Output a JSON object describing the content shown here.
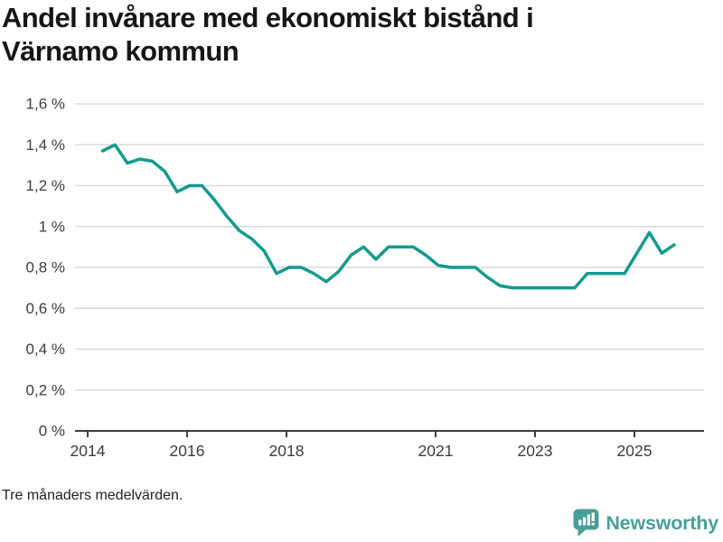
{
  "page": {
    "title": "Andel invånare med ekonomiskt bistånd i Värnamo kommun",
    "footnote": "Tre månaders medelvärden.",
    "brand": {
      "name": "Newsworthy",
      "icon": "bar-chart-speech-bubble",
      "color": "#4a9e99"
    }
  },
  "colors": {
    "line": "#149a8d",
    "grid": "#dadada",
    "axis": "#3d3d3d",
    "tick_text": "#3d3d3d",
    "title_text": "#161616",
    "background": "#ffffff"
  },
  "chart_data": {
    "type": "line",
    "title": "Andel invånare med ekonomiskt bistånd i Värnamo kommun",
    "series_name": "Andel invånare med ekonomiskt bistånd",
    "unit": "%",
    "decimal_style": "comma",
    "grid": "horizontal",
    "legend": "none",
    "xlabel": "",
    "ylabel": "",
    "xlim": [
      2013.745,
      2026.4
    ],
    "ylim": [
      0,
      1.6
    ],
    "x_ticks": [
      {
        "value": 2014,
        "label": "2014"
      },
      {
        "value": 2016,
        "label": "2016"
      },
      {
        "value": 2018,
        "label": "2018"
      },
      {
        "value": 2021,
        "label": "2021"
      },
      {
        "value": 2023,
        "label": "2023"
      },
      {
        "value": 2025,
        "label": "2025"
      }
    ],
    "y_ticks": [
      {
        "value": 0,
        "label": "0 %"
      },
      {
        "value": 0.2,
        "label": "0,2 %"
      },
      {
        "value": 0.4,
        "label": "0,4 %"
      },
      {
        "value": 0.6,
        "label": "0,6 %"
      },
      {
        "value": 0.8,
        "label": "0,8 %"
      },
      {
        "value": 1,
        "label": "1 %"
      },
      {
        "value": 1.2,
        "label": "1,2 %"
      },
      {
        "value": 1.4,
        "label": "1,4 %"
      },
      {
        "value": 1.6,
        "label": "1,6 %"
      }
    ],
    "x": [
      2014.3,
      2014.55,
      2014.8,
      2015.05,
      2015.3,
      2015.55,
      2015.8,
      2016.05,
      2016.3,
      2016.55,
      2016.8,
      2017.05,
      2017.3,
      2017.55,
      2017.8,
      2018.05,
      2018.3,
      2018.55,
      2018.8,
      2019.05,
      2019.3,
      2019.55,
      2019.8,
      2020.05,
      2020.3,
      2020.55,
      2020.8,
      2021.05,
      2021.3,
      2021.55,
      2021.8,
      2022.05,
      2022.3,
      2022.55,
      2022.8,
      2023.05,
      2023.3,
      2023.55,
      2023.8,
      2024.05,
      2024.3,
      2024.55,
      2024.8,
      2025.05,
      2025.3,
      2025.55,
      2025.8
    ],
    "y": [
      1.37,
      1.4,
      1.31,
      1.33,
      1.32,
      1.27,
      1.17,
      1.2,
      1.2,
      1.13,
      1.05,
      0.98,
      0.94,
      0.88,
      0.77,
      0.8,
      0.8,
      0.77,
      0.73,
      0.78,
      0.86,
      0.9,
      0.84,
      0.9,
      0.9,
      0.9,
      0.86,
      0.81,
      0.8,
      0.8,
      0.8,
      0.75,
      0.71,
      0.7,
      0.7,
      0.7,
      0.7,
      0.7,
      0.7,
      0.77,
      0.77,
      0.77,
      0.77,
      0.87,
      0.97,
      0.87,
      0.91
    ]
  }
}
